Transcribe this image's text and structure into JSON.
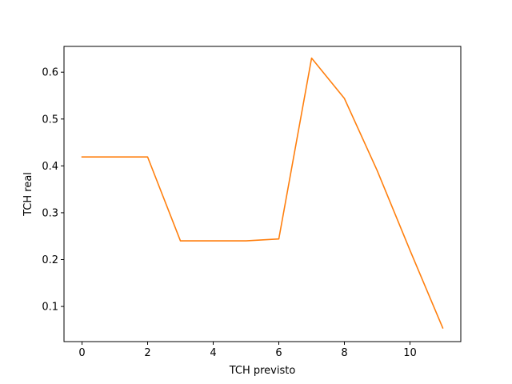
{
  "chart_data": {
    "type": "line",
    "title": "",
    "xlabel": "TCH previsto",
    "ylabel": "TCH real",
    "xlim": [
      -0.55,
      11.55
    ],
    "ylim": [
      0.025,
      0.655
    ],
    "xticks": [
      0,
      2,
      4,
      6,
      8,
      10
    ],
    "yticks": [
      0.1,
      0.2,
      0.3,
      0.4,
      0.5,
      0.6
    ],
    "grid": false,
    "legend": "none",
    "series": [
      {
        "color": "#ff7f0e",
        "x": [
          0,
          1,
          2,
          3,
          4,
          5,
          6,
          7,
          8,
          9,
          10,
          11
        ],
        "y": [
          0.419,
          0.419,
          0.419,
          0.24,
          0.24,
          0.24,
          0.244,
          0.63,
          0.544,
          0.39,
          0.22,
          0.054
        ]
      }
    ]
  }
}
